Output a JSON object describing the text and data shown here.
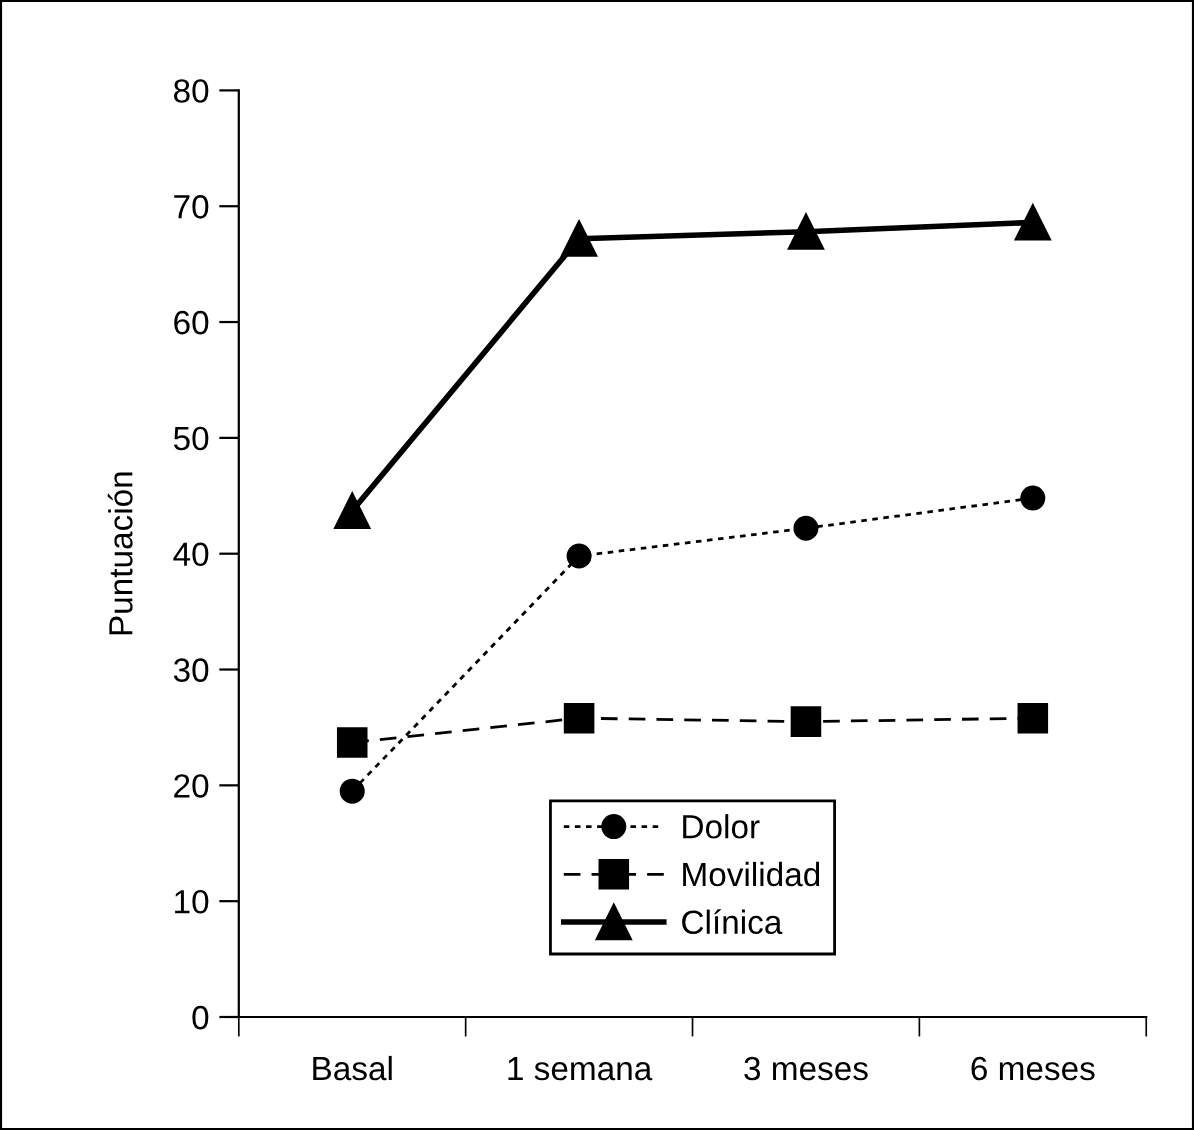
{
  "chart_data": {
    "type": "line",
    "ylabel": "Puntuación",
    "categories": [
      "Basal",
      "1 semana",
      "3 meses",
      "6 meses"
    ],
    "series": [
      {
        "name": "Dolor",
        "color": "#000000",
        "values": [
          19.5,
          39.8,
          42.2,
          44.8
        ],
        "marker": "circle",
        "line_style": "dotted"
      },
      {
        "name": "Movilidad",
        "color": "#000000",
        "values": [
          23.7,
          25.8,
          25.5,
          25.8
        ],
        "marker": "square",
        "line_style": "dashed"
      },
      {
        "name": "Clínica",
        "color": "#000000",
        "values": [
          43.7,
          67.2,
          67.8,
          68.6
        ],
        "marker": "triangle",
        "line_style": "solid"
      }
    ],
    "ylim": [
      0,
      80
    ],
    "yticks": [
      0,
      10,
      20,
      30,
      40,
      50,
      60,
      70,
      80
    ],
    "grid": false,
    "legend": "bottom"
  }
}
